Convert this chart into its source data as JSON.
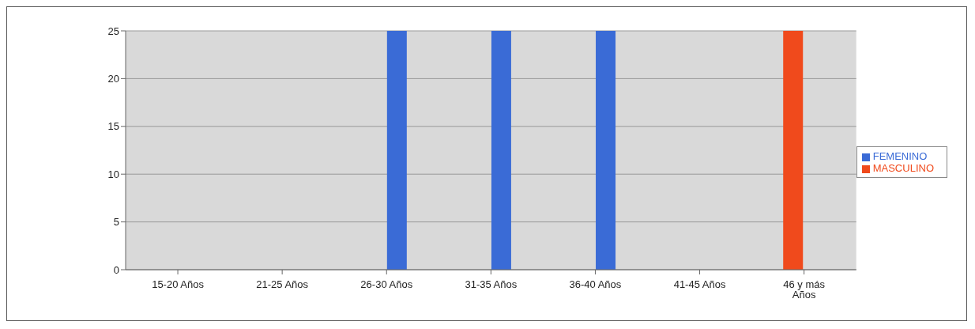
{
  "chart_data": {
    "type": "bar",
    "categories": [
      "15-20 Años",
      "21-25 Años",
      "26-30 Años",
      "31-35 Años",
      "36-40 Años",
      "41-45 Años",
      "46 y más Años"
    ],
    "series": [
      {
        "name": "MASCULINO",
        "color": "#f04a1c",
        "values": [
          0,
          0,
          0,
          0,
          0,
          0,
          25
        ]
      },
      {
        "name": "FEMENINO",
        "color": "#3a6bd6",
        "values": [
          0,
          0,
          25,
          25,
          25,
          0,
          0
        ]
      }
    ],
    "ylim": [
      0,
      25
    ],
    "yticks": [
      0,
      5,
      10,
      15,
      20,
      25
    ],
    "grid": "y",
    "legend": "right"
  }
}
